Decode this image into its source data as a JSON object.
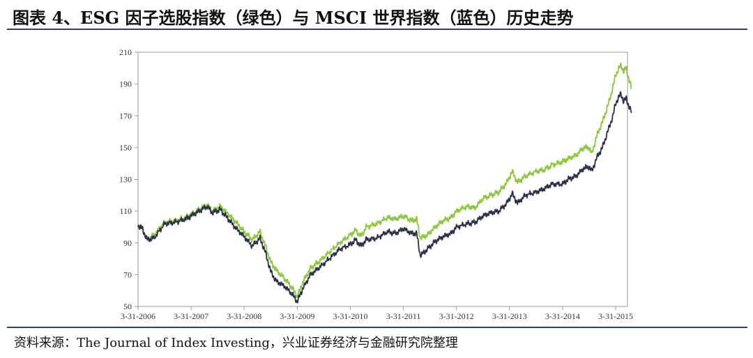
{
  "header": {
    "title": "图表 4、ESG 因子选股指数（绿色）与 MSCI 世界指数（蓝色）历史走势"
  },
  "footer": {
    "source": "资料来源：The Journal of Index Investing，兴业证券经济与金融研究院整理"
  },
  "colors": {
    "esg_series": "#8dc63f",
    "msci_series": "#2b3049",
    "axis": "#999999",
    "rule": "#2c3f73"
  },
  "chart_data": {
    "type": "line",
    "title": "",
    "xlabel": "",
    "ylabel": "",
    "ylim": [
      50,
      210
    ],
    "yticks": [
      50,
      70,
      90,
      110,
      130,
      150,
      170,
      190,
      210
    ],
    "xlim": [
      2006.0,
      2015.33
    ],
    "xticks": [
      {
        "x": 2006.0,
        "label": "3-31-2006"
      },
      {
        "x": 2007.0,
        "label": "3-31-2007"
      },
      {
        "x": 2008.0,
        "label": "3-31-2008"
      },
      {
        "x": 2009.0,
        "label": "3-31-2009"
      },
      {
        "x": 2010.0,
        "label": "3-31-2010"
      },
      {
        "x": 2011.0,
        "label": "3-31-2011"
      },
      {
        "x": 2012.0,
        "label": "3-31-2012"
      },
      {
        "x": 2013.0,
        "label": "3-31-2013"
      },
      {
        "x": 2014.0,
        "label": "3-31-2014"
      },
      {
        "x": 2015.0,
        "label": "3-31-2015"
      }
    ],
    "grid": false,
    "series": [
      {
        "name": "",
        "color": "#8dc63f",
        "points": [
          [
            2006.0,
            101
          ],
          [
            2006.08,
            99
          ],
          [
            2006.17,
            92
          ],
          [
            2006.3,
            95
          ],
          [
            2006.5,
            103
          ],
          [
            2006.7,
            104
          ],
          [
            2006.9,
            106
          ],
          [
            2007.0,
            108
          ],
          [
            2007.15,
            111
          ],
          [
            2007.3,
            114
          ],
          [
            2007.4,
            110
          ],
          [
            2007.55,
            113
          ],
          [
            2007.7,
            108
          ],
          [
            2007.85,
            103
          ],
          [
            2008.0,
            97
          ],
          [
            2008.15,
            92
          ],
          [
            2008.3,
            97
          ],
          [
            2008.4,
            88
          ],
          [
            2008.5,
            78
          ],
          [
            2008.6,
            73
          ],
          [
            2008.75,
            68
          ],
          [
            2008.9,
            62
          ],
          [
            2009.0,
            56
          ],
          [
            2009.1,
            65
          ],
          [
            2009.25,
            74
          ],
          [
            2009.4,
            78
          ],
          [
            2009.6,
            84
          ],
          [
            2009.8,
            90
          ],
          [
            2010.0,
            95
          ],
          [
            2010.1,
            98
          ],
          [
            2010.2,
            94
          ],
          [
            2010.3,
            100
          ],
          [
            2010.5,
            102
          ],
          [
            2010.7,
            106
          ],
          [
            2010.85,
            105
          ],
          [
            2011.0,
            107
          ],
          [
            2011.15,
            104
          ],
          [
            2011.25,
            105
          ],
          [
            2011.32,
            93
          ],
          [
            2011.45,
            95
          ],
          [
            2011.6,
            100
          ],
          [
            2011.75,
            104
          ],
          [
            2011.9,
            106
          ],
          [
            2012.0,
            110
          ],
          [
            2012.2,
            113
          ],
          [
            2012.35,
            112
          ],
          [
            2012.5,
            118
          ],
          [
            2012.65,
            120
          ],
          [
            2012.8,
            122
          ],
          [
            2012.95,
            128
          ],
          [
            2013.05,
            135
          ],
          [
            2013.15,
            128
          ],
          [
            2013.3,
            132
          ],
          [
            2013.5,
            135
          ],
          [
            2013.65,
            136
          ],
          [
            2013.8,
            139
          ],
          [
            2014.0,
            141
          ],
          [
            2014.1,
            143
          ],
          [
            2014.25,
            145
          ],
          [
            2014.4,
            150
          ],
          [
            2014.5,
            150
          ],
          [
            2014.55,
            146
          ],
          [
            2014.65,
            158
          ],
          [
            2014.75,
            166
          ],
          [
            2014.85,
            176
          ],
          [
            2014.95,
            188
          ],
          [
            2015.0,
            196
          ],
          [
            2015.1,
            202
          ],
          [
            2015.15,
            198
          ],
          [
            2015.2,
            200
          ],
          [
            2015.25,
            193
          ],
          [
            2015.3,
            187
          ]
        ]
      },
      {
        "name": "",
        "color": "#2b3049",
        "points": [
          [
            2006.0,
            101
          ],
          [
            2006.08,
            99
          ],
          [
            2006.17,
            92
          ],
          [
            2006.3,
            93
          ],
          [
            2006.5,
            102
          ],
          [
            2006.7,
            103
          ],
          [
            2006.9,
            105
          ],
          [
            2007.0,
            107
          ],
          [
            2007.15,
            110
          ],
          [
            2007.3,
            113
          ],
          [
            2007.4,
            109
          ],
          [
            2007.55,
            111
          ],
          [
            2007.7,
            105
          ],
          [
            2007.85,
            99
          ],
          [
            2008.0,
            94
          ],
          [
            2008.15,
            88
          ],
          [
            2008.3,
            93
          ],
          [
            2008.4,
            84
          ],
          [
            2008.5,
            72
          ],
          [
            2008.6,
            66
          ],
          [
            2008.75,
            63
          ],
          [
            2008.9,
            58
          ],
          [
            2009.0,
            53
          ],
          [
            2009.1,
            61
          ],
          [
            2009.25,
            70
          ],
          [
            2009.4,
            74
          ],
          [
            2009.6,
            80
          ],
          [
            2009.8,
            86
          ],
          [
            2010.0,
            89
          ],
          [
            2010.1,
            92
          ],
          [
            2010.2,
            88
          ],
          [
            2010.3,
            92
          ],
          [
            2010.5,
            93
          ],
          [
            2010.7,
            97
          ],
          [
            2010.85,
            96
          ],
          [
            2011.0,
            99
          ],
          [
            2011.15,
            96
          ],
          [
            2011.25,
            96
          ],
          [
            2011.32,
            82
          ],
          [
            2011.45,
            86
          ],
          [
            2011.6,
            91
          ],
          [
            2011.75,
            94
          ],
          [
            2011.9,
            96
          ],
          [
            2012.0,
            100
          ],
          [
            2012.2,
            102
          ],
          [
            2012.35,
            103
          ],
          [
            2012.5,
            107
          ],
          [
            2012.65,
            109
          ],
          [
            2012.8,
            110
          ],
          [
            2012.95,
            115
          ],
          [
            2013.05,
            121
          ],
          [
            2013.15,
            115
          ],
          [
            2013.3,
            120
          ],
          [
            2013.5,
            122
          ],
          [
            2013.65,
            124
          ],
          [
            2013.8,
            127
          ],
          [
            2014.0,
            127
          ],
          [
            2014.1,
            130
          ],
          [
            2014.25,
            132
          ],
          [
            2014.4,
            137
          ],
          [
            2014.5,
            138
          ],
          [
            2014.55,
            135
          ],
          [
            2014.65,
            144
          ],
          [
            2014.75,
            150
          ],
          [
            2014.85,
            160
          ],
          [
            2014.95,
            170
          ],
          [
            2015.0,
            178
          ],
          [
            2015.1,
            184
          ],
          [
            2015.15,
            179
          ],
          [
            2015.2,
            181
          ],
          [
            2015.25,
            176
          ],
          [
            2015.3,
            172
          ]
        ]
      }
    ]
  }
}
